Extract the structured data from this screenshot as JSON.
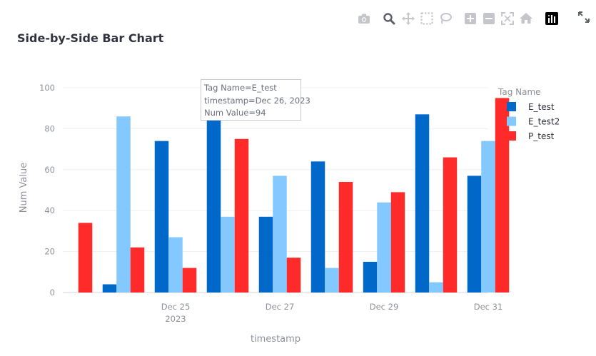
{
  "title": "Side-by-Side Bar Chart",
  "toolbar": {
    "icons": [
      "camera-icon",
      "zoom-icon",
      "pan-icon",
      "box-select-icon",
      "lasso-select-icon",
      "zoom-in-icon",
      "zoom-out-icon",
      "autoscale-icon",
      "reset-axes-icon",
      "plotly-logo-icon"
    ],
    "fullscreen_icon": "fullscreen-icon"
  },
  "tooltip": {
    "line1": "Tag Name=E_test",
    "line2": "timestamp=Dec 26, 2023",
    "line3": "Num Value=94"
  },
  "colors": {
    "E_test": "#0068c9",
    "E_test2": "#83c9ff",
    "P_test": "#ff2b2b"
  },
  "chart_data": {
    "type": "bar",
    "barmode": "group",
    "title": "Side-by-Side Bar Chart",
    "xlabel": "timestamp",
    "ylabel": "Num Value",
    "ylim": [
      0,
      100
    ],
    "yticks": [
      0,
      20,
      40,
      60,
      80,
      100
    ],
    "xticks": [
      {
        "value": "2023-12-25",
        "label": "Dec 25",
        "sublabel": "2023"
      },
      {
        "value": "2023-12-27",
        "label": "Dec 27",
        "sublabel": ""
      },
      {
        "value": "2023-12-29",
        "label": "Dec 29",
        "sublabel": ""
      },
      {
        "value": "2023-12-31",
        "label": "Dec 31",
        "sublabel": ""
      }
    ],
    "categories": [
      "2023-12-23",
      "2023-12-24",
      "2023-12-25",
      "2023-12-26",
      "2023-12-27",
      "2023-12-28",
      "2023-12-29",
      "2023-12-30",
      "2023-12-31"
    ],
    "legend_title": "Tag Name",
    "legend_position": "right",
    "grid": true,
    "series": [
      {
        "name": "E_test",
        "color": "#0068c9",
        "values": [
          null,
          4,
          74,
          94,
          37,
          64,
          15,
          87,
          57
        ]
      },
      {
        "name": "E_test2",
        "color": "#83c9ff",
        "values": [
          null,
          86,
          27,
          37,
          57,
          12,
          44,
          5,
          74
        ]
      },
      {
        "name": "P_test",
        "color": "#ff2b2b",
        "values": [
          34,
          22,
          12,
          75,
          17,
          54,
          49,
          66,
          95
        ]
      }
    ]
  }
}
